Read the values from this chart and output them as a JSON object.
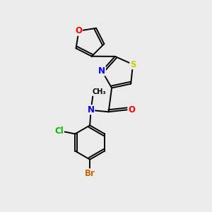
{
  "background_color": "#ebebeb",
  "bond_color": "#000000",
  "atom_colors": {
    "O": "#ff0000",
    "S": "#cccc00",
    "N": "#0000ff",
    "Cl": "#00bb00",
    "Br": "#cc6600",
    "C": "#000000"
  },
  "figsize": [
    3.0,
    3.0
  ],
  "dpi": 100,
  "bond_lw": 1.4,
  "fontsize": 8.5
}
